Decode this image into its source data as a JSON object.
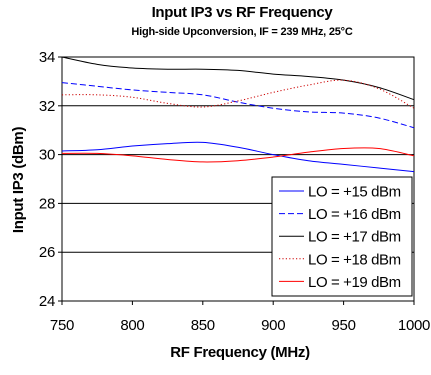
{
  "chart_data": {
    "type": "line",
    "title": "Input IP3 vs RF Frequency",
    "subtitle": "High-side Upconversion, IF = 239 MHz, 25°C",
    "xlabel": "RF Frequency (MHz)",
    "ylabel": "Input IP3 (dBm)",
    "xlim": [
      750,
      1000
    ],
    "ylim": [
      24,
      34
    ],
    "xticks": [
      750,
      800,
      850,
      900,
      950,
      1000
    ],
    "yticks": [
      24,
      26,
      28,
      30,
      32,
      34
    ],
    "xtick_labels": [
      "750",
      "800",
      "850",
      "900",
      "950",
      "1000"
    ],
    "ytick_labels": [
      "24",
      "26",
      "28",
      "30",
      "32",
      "34"
    ],
    "grid": true,
    "legend_position": "bottom-right",
    "x": [
      750,
      775,
      800,
      825,
      850,
      875,
      900,
      925,
      950,
      975,
      1000
    ],
    "series": [
      {
        "name": "LO = +15 dBm",
        "color": "#0000ff",
        "dash": "solid",
        "values": [
          30.15,
          30.2,
          30.35,
          30.45,
          30.5,
          30.3,
          30.0,
          29.75,
          29.6,
          29.45,
          29.3
        ]
      },
      {
        "name": "LO = +16 dBm",
        "color": "#0000ff",
        "dash": "dashed",
        "values": [
          32.95,
          32.8,
          32.65,
          32.55,
          32.45,
          32.15,
          31.9,
          31.75,
          31.7,
          31.5,
          31.1
        ]
      },
      {
        "name": "LO = +17 dBm",
        "color": "#000000",
        "dash": "solid",
        "values": [
          34.0,
          33.7,
          33.55,
          33.5,
          33.5,
          33.45,
          33.3,
          33.2,
          33.05,
          32.75,
          32.25
        ]
      },
      {
        "name": "LO = +18 dBm",
        "color": "#cc0000",
        "dash": "dotted",
        "values": [
          32.45,
          32.45,
          32.35,
          32.1,
          31.95,
          32.2,
          32.55,
          32.85,
          33.05,
          32.7,
          31.9
        ]
      },
      {
        "name": "LO = +19 dBm",
        "color": "#ff0000",
        "dash": "solid",
        "values": [
          30.05,
          30.05,
          29.95,
          29.8,
          29.7,
          29.75,
          29.9,
          30.1,
          30.25,
          30.25,
          29.95
        ]
      }
    ]
  }
}
